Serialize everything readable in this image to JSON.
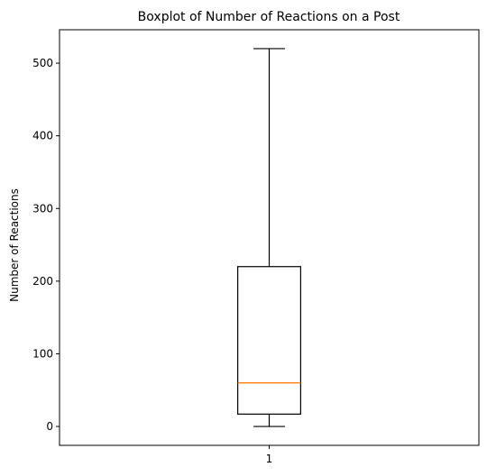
{
  "chart_data": {
    "type": "boxplot",
    "title": "Boxplot of Number of Reactions on a Post",
    "xlabel": "",
    "ylabel": "Number of Reactions",
    "categories": [
      "1"
    ],
    "boxes": [
      {
        "category": "1",
        "whisker_low": 0,
        "q1": 17,
        "median": 60,
        "q3": 220,
        "whisker_high": 520
      }
    ],
    "ylim": [
      -26,
      546
    ],
    "xlim": [
      0.5,
      1.5
    ],
    "yticks": [
      0,
      100,
      200,
      300,
      400,
      500
    ],
    "grid": false,
    "colors": {
      "box": "#000000",
      "median": "#ff7f0e",
      "axes": "#000000"
    }
  }
}
